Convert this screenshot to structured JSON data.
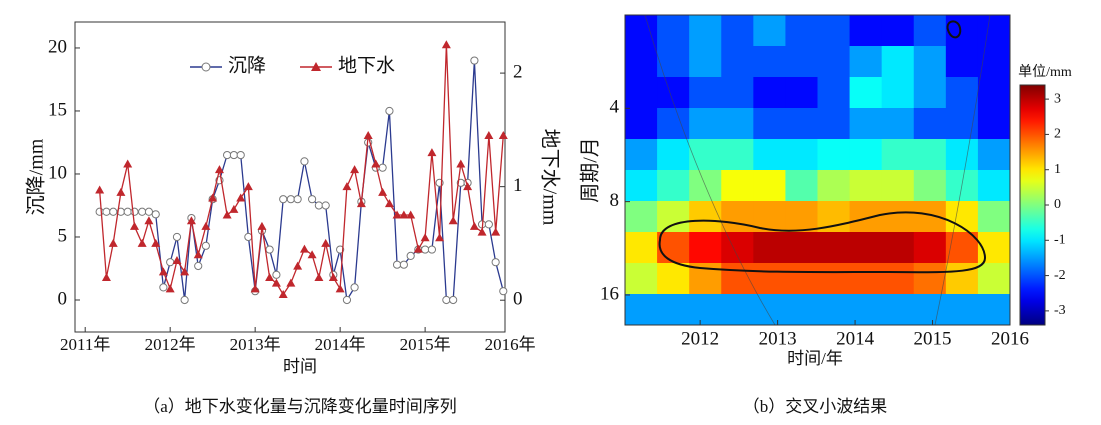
{
  "chart_data": [
    {
      "type": "line",
      "x_label": "时间",
      "y_label": "沉降/mm",
      "y2_label": "地下水/mm",
      "caption": "（a）地下水变化量与沉降变化量时间序列",
      "x": [
        2011.17,
        2011.25,
        2011.33,
        2011.42,
        2011.5,
        2011.58,
        2011.67,
        2011.75,
        2011.83,
        2011.92,
        2012.0,
        2012.08,
        2012.17,
        2012.25,
        2012.33,
        2012.42,
        2012.5,
        2012.58,
        2012.67,
        2012.75,
        2012.83,
        2012.92,
        2013.0,
        2013.08,
        2013.17,
        2013.25,
        2013.33,
        2013.42,
        2013.5,
        2013.58,
        2013.67,
        2013.75,
        2013.83,
        2013.92,
        2014.0,
        2014.08,
        2014.17,
        2014.25,
        2014.33,
        2014.42,
        2014.5,
        2014.58,
        2014.67,
        2014.75,
        2014.83,
        2014.92,
        2015.0,
        2015.08,
        2015.17,
        2015.25,
        2015.33,
        2015.42,
        2015.5,
        2015.58,
        2015.67,
        2015.75,
        2015.83,
        2015.92
      ],
      "series": [
        {
          "name": "沉降",
          "color": "#2b3a8f",
          "marker": "circle",
          "values": [
            7,
            7,
            7,
            7,
            7,
            7,
            7,
            7,
            6.8,
            1,
            3,
            5,
            0,
            6.5,
            2.7,
            4.3,
            8,
            9.5,
            11.5,
            11.5,
            11.5,
            5,
            0.7,
            5.5,
            4,
            2,
            8,
            8,
            8,
            11,
            8,
            7.5,
            7.5,
            2,
            4,
            0,
            1,
            7.8,
            12.5,
            10.5,
            10.5,
            15,
            2.8,
            2.8,
            3.5,
            4,
            4,
            4,
            9.3,
            0,
            0,
            9.3,
            9.3,
            19,
            6,
            6,
            3,
            0.7
          ]
        },
        {
          "name": "地下水",
          "color": "#c0272d",
          "marker": "triangle",
          "axis": "y2",
          "values": [
            0.97,
            0.2,
            0.5,
            0.95,
            1.2,
            0.65,
            0.5,
            0.7,
            0.5,
            0.25,
            0.1,
            0.35,
            0.25,
            0.7,
            0.4,
            0.65,
            0.9,
            1.15,
            0.75,
            0.8,
            0.9,
            1.0,
            0.1,
            0.65,
            0.2,
            0.15,
            0.05,
            0.15,
            0.3,
            0.45,
            0.4,
            0.2,
            0.5,
            0.2,
            0.1,
            1.0,
            1.15,
            0.85,
            1.45,
            1.2,
            0.95,
            0.85,
            0.75,
            0.75,
            0.75,
            0.45,
            0.55,
            1.3,
            0.55,
            2.25,
            0.7,
            1.2,
            1.0,
            0.65,
            0.6,
            1.45,
            0.6,
            1.45
          ]
        }
      ],
      "xlim": [
        2010.88,
        2015.94
      ],
      "xticks": [
        {
          "value": 2011,
          "label": "2011年"
        },
        {
          "value": 2012,
          "label": "2012年"
        },
        {
          "value": 2013,
          "label": "2013年"
        },
        {
          "value": 2014,
          "label": "2014年"
        },
        {
          "value": 2015,
          "label": "2015年"
        },
        {
          "value": 2016,
          "label": "2016年"
        }
      ],
      "ylim": [
        -2.54,
        22.06
      ],
      "yticks": [
        0,
        5,
        10,
        15,
        20
      ],
      "y2lim": [
        -0.28,
        2.45
      ],
      "y2ticks": [
        0,
        1,
        2
      ],
      "legend": "top"
    },
    {
      "type": "heatmap",
      "x_label": "时间/年",
      "y_label": "周期/月",
      "colorbar_label": "单位/mm",
      "caption": "（b）交叉小波结果",
      "xlim": [
        2011.03,
        2016.0
      ],
      "xticks": [
        2012,
        2013,
        2014,
        2015,
        2016
      ],
      "ylim": [
        2,
        20
      ],
      "y_log": true,
      "y_inverted": true,
      "yticks": [
        4,
        8,
        16
      ],
      "clim": [
        -3.4,
        3.4
      ],
      "cticks": [
        -3,
        -2,
        -1,
        0,
        1,
        2,
        3
      ],
      "colormap": "jet",
      "values": [
        [
          -2.5,
          -2,
          -1.5,
          -2,
          -1.5,
          -2,
          -2,
          -2.5,
          -2.5,
          -2,
          -2.5,
          -2.5
        ],
        [
          -2.5,
          -2,
          -1.5,
          -2,
          -2,
          -2,
          -2,
          -1.5,
          -1,
          -1.5,
          -2.5,
          -2.5
        ],
        [
          -2.5,
          -2.5,
          -2,
          -2,
          -2.5,
          -2.5,
          -2,
          -0.8,
          -1,
          -1.5,
          -2,
          -2.5
        ],
        [
          -2.5,
          -2,
          -1.5,
          -1.5,
          -2,
          -2,
          -2,
          -1.5,
          -1.5,
          -2,
          -2,
          -2.5
        ],
        [
          -1.5,
          -1,
          -0.5,
          -0.5,
          -1,
          -1,
          -0.8,
          -0.8,
          -0.5,
          -0.5,
          -1,
          -1.5
        ],
        [
          -1,
          -0.5,
          0,
          0.8,
          0.8,
          -0.3,
          0.3,
          0.5,
          0.5,
          0,
          -0.5,
          -1
        ],
        [
          0,
          0.5,
          1.2,
          1.5,
          1.5,
          1.5,
          1.3,
          1.5,
          1.5,
          1.5,
          1,
          0
        ],
        [
          1,
          2,
          2.5,
          2.8,
          3,
          3,
          3,
          3,
          3,
          2.8,
          2,
          1
        ],
        [
          0.5,
          1,
          1.5,
          2,
          2,
          2,
          2,
          2,
          2,
          1.8,
          1.2,
          0.5
        ],
        [
          -1.5,
          -1.5,
          -1.5,
          -1.5,
          -1.5,
          -1.5,
          -1.5,
          -1.5,
          -1.5,
          -1.5,
          -1.5,
          -1.5
        ]
      ]
    }
  ]
}
